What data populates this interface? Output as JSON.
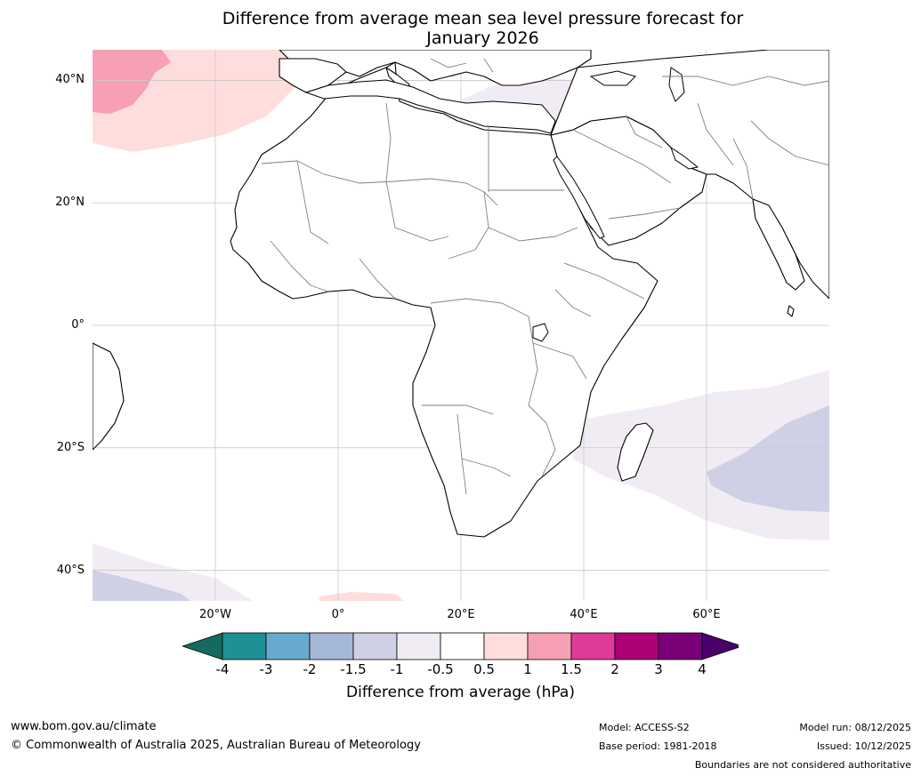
{
  "title": {
    "line1": "Difference from average mean sea level pressure forecast for",
    "line2": "January 2026"
  },
  "map": {
    "lat_labels": [
      "40°N",
      "20°N",
      "0°",
      "20°S",
      "40°S"
    ],
    "lon_labels": [
      "20°W",
      "0°",
      "20°E",
      "40°E",
      "60°E"
    ],
    "lat_values": [
      40,
      20,
      0,
      -20,
      -40
    ],
    "lon_values": [
      -20,
      0,
      20,
      40,
      60
    ],
    "extent": {
      "lon_min": -40,
      "lon_max": 80,
      "lat_min": -45,
      "lat_max": 45
    },
    "colors": {
      "ocean": "#ffffff",
      "land": "#ffffff",
      "coast": "#000000",
      "border": "#808080",
      "grid": "#c8c8c8"
    }
  },
  "colorbar": {
    "labels": [
      "-4",
      "-3",
      "-2",
      "-1.5",
      "-1",
      "-0.5",
      "0.5",
      "1",
      "1.5",
      "2",
      "3",
      "4"
    ],
    "colors": [
      "#136b5e",
      "#1f9095",
      "#67a9cf",
      "#a6b8d8",
      "#cfd0e5",
      "#f1ecf4",
      "#ffffff",
      "#fedddc",
      "#f79fb4",
      "#dd3b97",
      "#ad0077",
      "#7a0177",
      "#49006a"
    ],
    "title": "Difference from average (hPa)"
  },
  "footer": {
    "website": "www.bom.gov.au/climate",
    "copyright": "© Commonwealth of Australia 2025, Australian Bureau of Meteorology",
    "model": "Model: ACCESS-S2",
    "base_period": "Base period: 1981-2018",
    "model_run": "Model run: 08/12/2025",
    "issued": "Issued: 10/12/2025",
    "disclaimer": "Boundaries are not considered authoritative"
  }
}
